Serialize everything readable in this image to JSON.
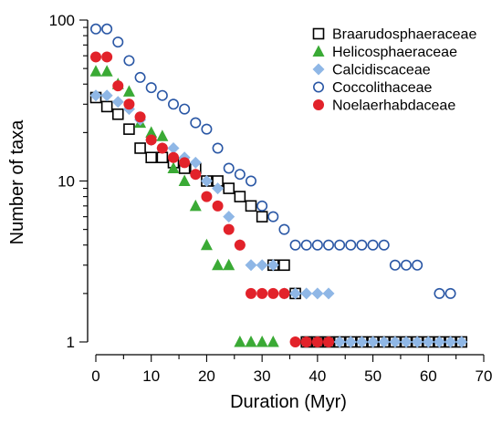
{
  "chart_data": {
    "type": "scatter",
    "xlabel": "Duration (Myr)",
    "ylabel": "Number of taxa",
    "xlim": [
      0,
      70
    ],
    "ylim": [
      1,
      100
    ],
    "yscale": "log",
    "x_ticks": [
      0,
      10,
      20,
      30,
      40,
      50,
      60,
      70
    ],
    "y_ticks": [
      1,
      10,
      100
    ],
    "x_tick_labels": [
      "0",
      "10",
      "20",
      "30",
      "40",
      "50",
      "60",
      "70"
    ],
    "y_tick_labels": [
      "1",
      "10",
      "100"
    ],
    "grid": false,
    "legend_position": "top-right",
    "series": [
      {
        "name": "Braarudosphaeraceae",
        "marker": "open-square",
        "color": "#000000",
        "x": [
          0,
          2,
          4,
          6,
          8,
          10,
          12,
          14,
          16,
          18,
          20,
          22,
          24,
          26,
          28,
          30,
          32,
          34,
          36,
          38,
          40,
          42,
          44,
          46,
          48,
          50,
          52,
          54,
          56,
          58,
          60,
          62,
          64,
          66
        ],
        "y": [
          33,
          29,
          26,
          21,
          16,
          14,
          14,
          13,
          12,
          12,
          10,
          10,
          9,
          8,
          7,
          6,
          3,
          3,
          2,
          1,
          1,
          1,
          1,
          1,
          1,
          1,
          1,
          1,
          1,
          1,
          1,
          1,
          1,
          1
        ]
      },
      {
        "name": "Helicosphaeraceae",
        "marker": "triangle",
        "color": "#3aaa35",
        "x": [
          0,
          2,
          4,
          6,
          8,
          10,
          12,
          14,
          16,
          18,
          20,
          22,
          24,
          26,
          28,
          30,
          32
        ],
        "y": [
          48,
          48,
          40,
          36,
          23,
          20,
          19,
          12,
          10,
          7,
          4,
          3,
          3,
          1,
          1,
          1,
          1
        ]
      },
      {
        "name": "Calcidiscaceae",
        "marker": "diamond",
        "color": "#8fb7e6",
        "x": [
          0,
          2,
          4,
          6,
          8,
          10,
          12,
          14,
          16,
          18,
          20,
          22,
          24,
          26,
          28,
          30,
          32,
          34,
          36,
          38,
          40,
          42,
          44,
          46,
          48,
          50,
          52,
          54,
          56,
          58,
          60,
          62,
          64,
          66
        ],
        "y": [
          34,
          34,
          31,
          28,
          24,
          18,
          16,
          16,
          14,
          13,
          10,
          9,
          6,
          4,
          3,
          3,
          3,
          2,
          2,
          2,
          2,
          2,
          1,
          1,
          1,
          1,
          1,
          1,
          1,
          1,
          1,
          1,
          1,
          1
        ]
      },
      {
        "name": "Coccolithaceae",
        "marker": "open-circle",
        "color": "#2a57a5",
        "x": [
          0,
          2,
          4,
          6,
          8,
          10,
          12,
          14,
          16,
          18,
          20,
          22,
          24,
          26,
          28,
          30,
          32,
          34,
          36,
          38,
          40,
          42,
          44,
          46,
          48,
          50,
          52,
          54,
          56,
          58,
          62,
          64
        ],
        "y": [
          88,
          88,
          73,
          56,
          44,
          38,
          34,
          30,
          28,
          23,
          21,
          16,
          12,
          11,
          10,
          7,
          6,
          5,
          4,
          4,
          4,
          4,
          4,
          4,
          4,
          4,
          4,
          3,
          3,
          3,
          2,
          2
        ]
      },
      {
        "name": "Noelaerhabdaceae",
        "marker": "filled-circle",
        "color": "#e2222a",
        "x": [
          0,
          2,
          4,
          6,
          8,
          10,
          12,
          14,
          16,
          18,
          20,
          22,
          24,
          26,
          28,
          30,
          32,
          34,
          36,
          38,
          40,
          42
        ],
        "y": [
          59,
          59,
          39,
          30,
          25,
          18,
          16,
          14,
          13,
          11,
          8,
          7,
          5,
          4,
          2,
          2,
          2,
          2,
          1,
          1,
          1,
          1
        ]
      }
    ]
  }
}
